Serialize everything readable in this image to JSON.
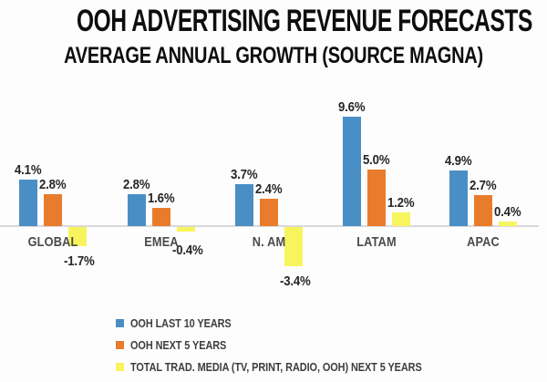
{
  "title": "OOH ADVERTISING REVENUE FORECASTS",
  "subtitle": "AVERAGE ANNUAL GROWTH (SOURCE MAGNA)",
  "colors": {
    "background": "#FDFDFD",
    "axis": "#D9D9D9",
    "value_label": "#262626",
    "category_label": "#4A4A4A",
    "legend_label": "#3E3E3E",
    "title_text": "#0D0D0D"
  },
  "chart_data": {
    "type": "bar",
    "categories": [
      "GLOBAL",
      "EMEA",
      "N. AM",
      "LATAM",
      "APAC"
    ],
    "series": [
      {
        "name": "OOH LAST 10 YEARS",
        "color": "#4A8EC6",
        "values": [
          4.1,
          2.8,
          3.7,
          9.6,
          4.9
        ]
      },
      {
        "name": "OOH NEXT 5 YEARS",
        "color": "#E97C2C",
        "values": [
          2.8,
          1.6,
          2.4,
          5.0,
          2.7
        ]
      },
      {
        "name": "TOTAL TRAD. MEDIA (TV, PRINT, RADIO, OOH) NEXT 5 YEARS",
        "color": "#F7F45E",
        "values": [
          -1.7,
          -0.4,
          -3.4,
          1.2,
          0.4
        ]
      }
    ],
    "value_suffix": "%",
    "value_decimals": 1,
    "data_labels": true,
    "ylim": [
      -3.4,
      9.6
    ],
    "grid": false,
    "y_axis_visible": false,
    "legend_position": "bottom-left"
  }
}
